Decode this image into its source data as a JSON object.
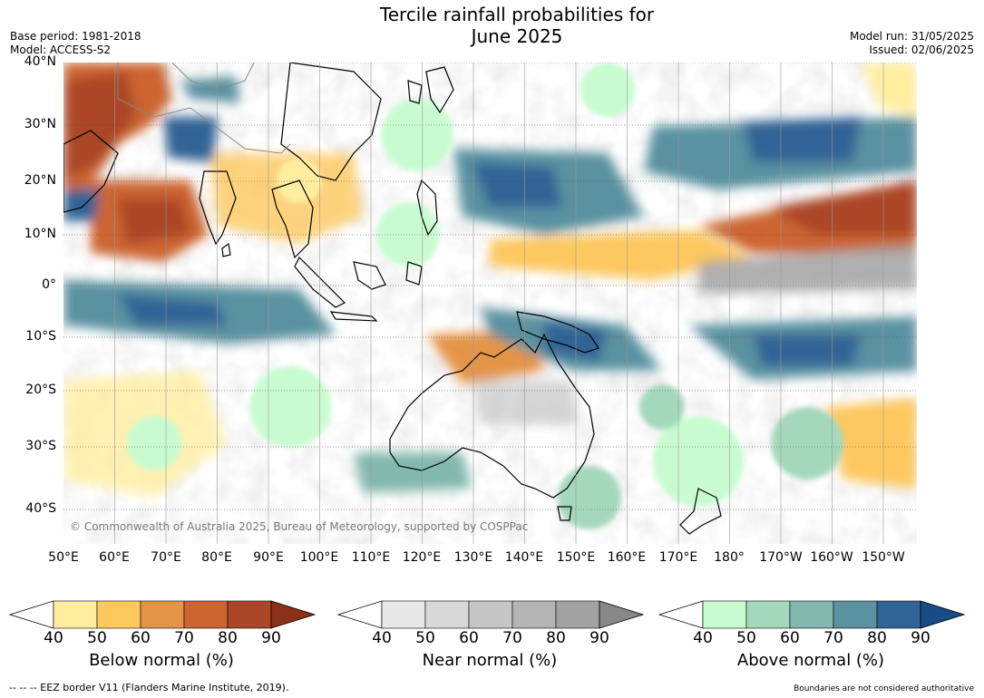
{
  "header": {
    "title_line1": "Tercile rainfall probabilities for",
    "title_line2": "June 2025",
    "base_period": "Base period: 1981-2018",
    "model": "Model: ACCESS-S2",
    "model_run": "Model run: 31/05/2025",
    "issued": "Issued: 02/06/2025"
  },
  "map": {
    "lat_labels": [
      "40°N",
      "30°N",
      "20°N",
      "10°N",
      "0°",
      "10°S",
      "20°S",
      "30°S",
      "40°S"
    ],
    "lon_labels": [
      "50°E",
      "60°E",
      "70°E",
      "80°E",
      "90°E",
      "100°E",
      "110°E",
      "120°E",
      "130°E",
      "140°E",
      "150°E",
      "160°E",
      "170°E",
      "180°",
      "170°W",
      "160°W",
      "150°W"
    ],
    "copyright": "© Commonwealth of Australia 2025, Bureau of Meteorology, supported by COSPPac"
  },
  "colorbars": [
    {
      "title": "Below normal (%)",
      "ticks": [
        "40",
        "50",
        "60",
        "70",
        "80",
        "90"
      ],
      "colors": [
        "#ffeea0",
        "#fdc85e",
        "#e49446",
        "#cc6532",
        "#ab4626"
      ],
      "extend_color": "#8c3118"
    },
    {
      "title": "Near normal (%)",
      "ticks": [
        "40",
        "50",
        "60",
        "70",
        "80",
        "90"
      ],
      "colors": [
        "#e8e8e8",
        "#d8d8d8",
        "#c6c6c6",
        "#b4b4b4",
        "#a2a2a2"
      ],
      "extend_color": "#888888"
    },
    {
      "title": "Above normal (%)",
      "ticks": [
        "40",
        "50",
        "60",
        "70",
        "80",
        "90"
      ],
      "colors": [
        "#c8fcd0",
        "#a4d8bc",
        "#82b8ae",
        "#5a92a0",
        "#306496"
      ],
      "extend_color": "#184c84"
    }
  ],
  "footer": {
    "eez_note": "--  --  -- EEZ border V11 (Flanders Marine Institute, 2019).",
    "boundaries_note": "Boundaries are not considered authoritative"
  }
}
